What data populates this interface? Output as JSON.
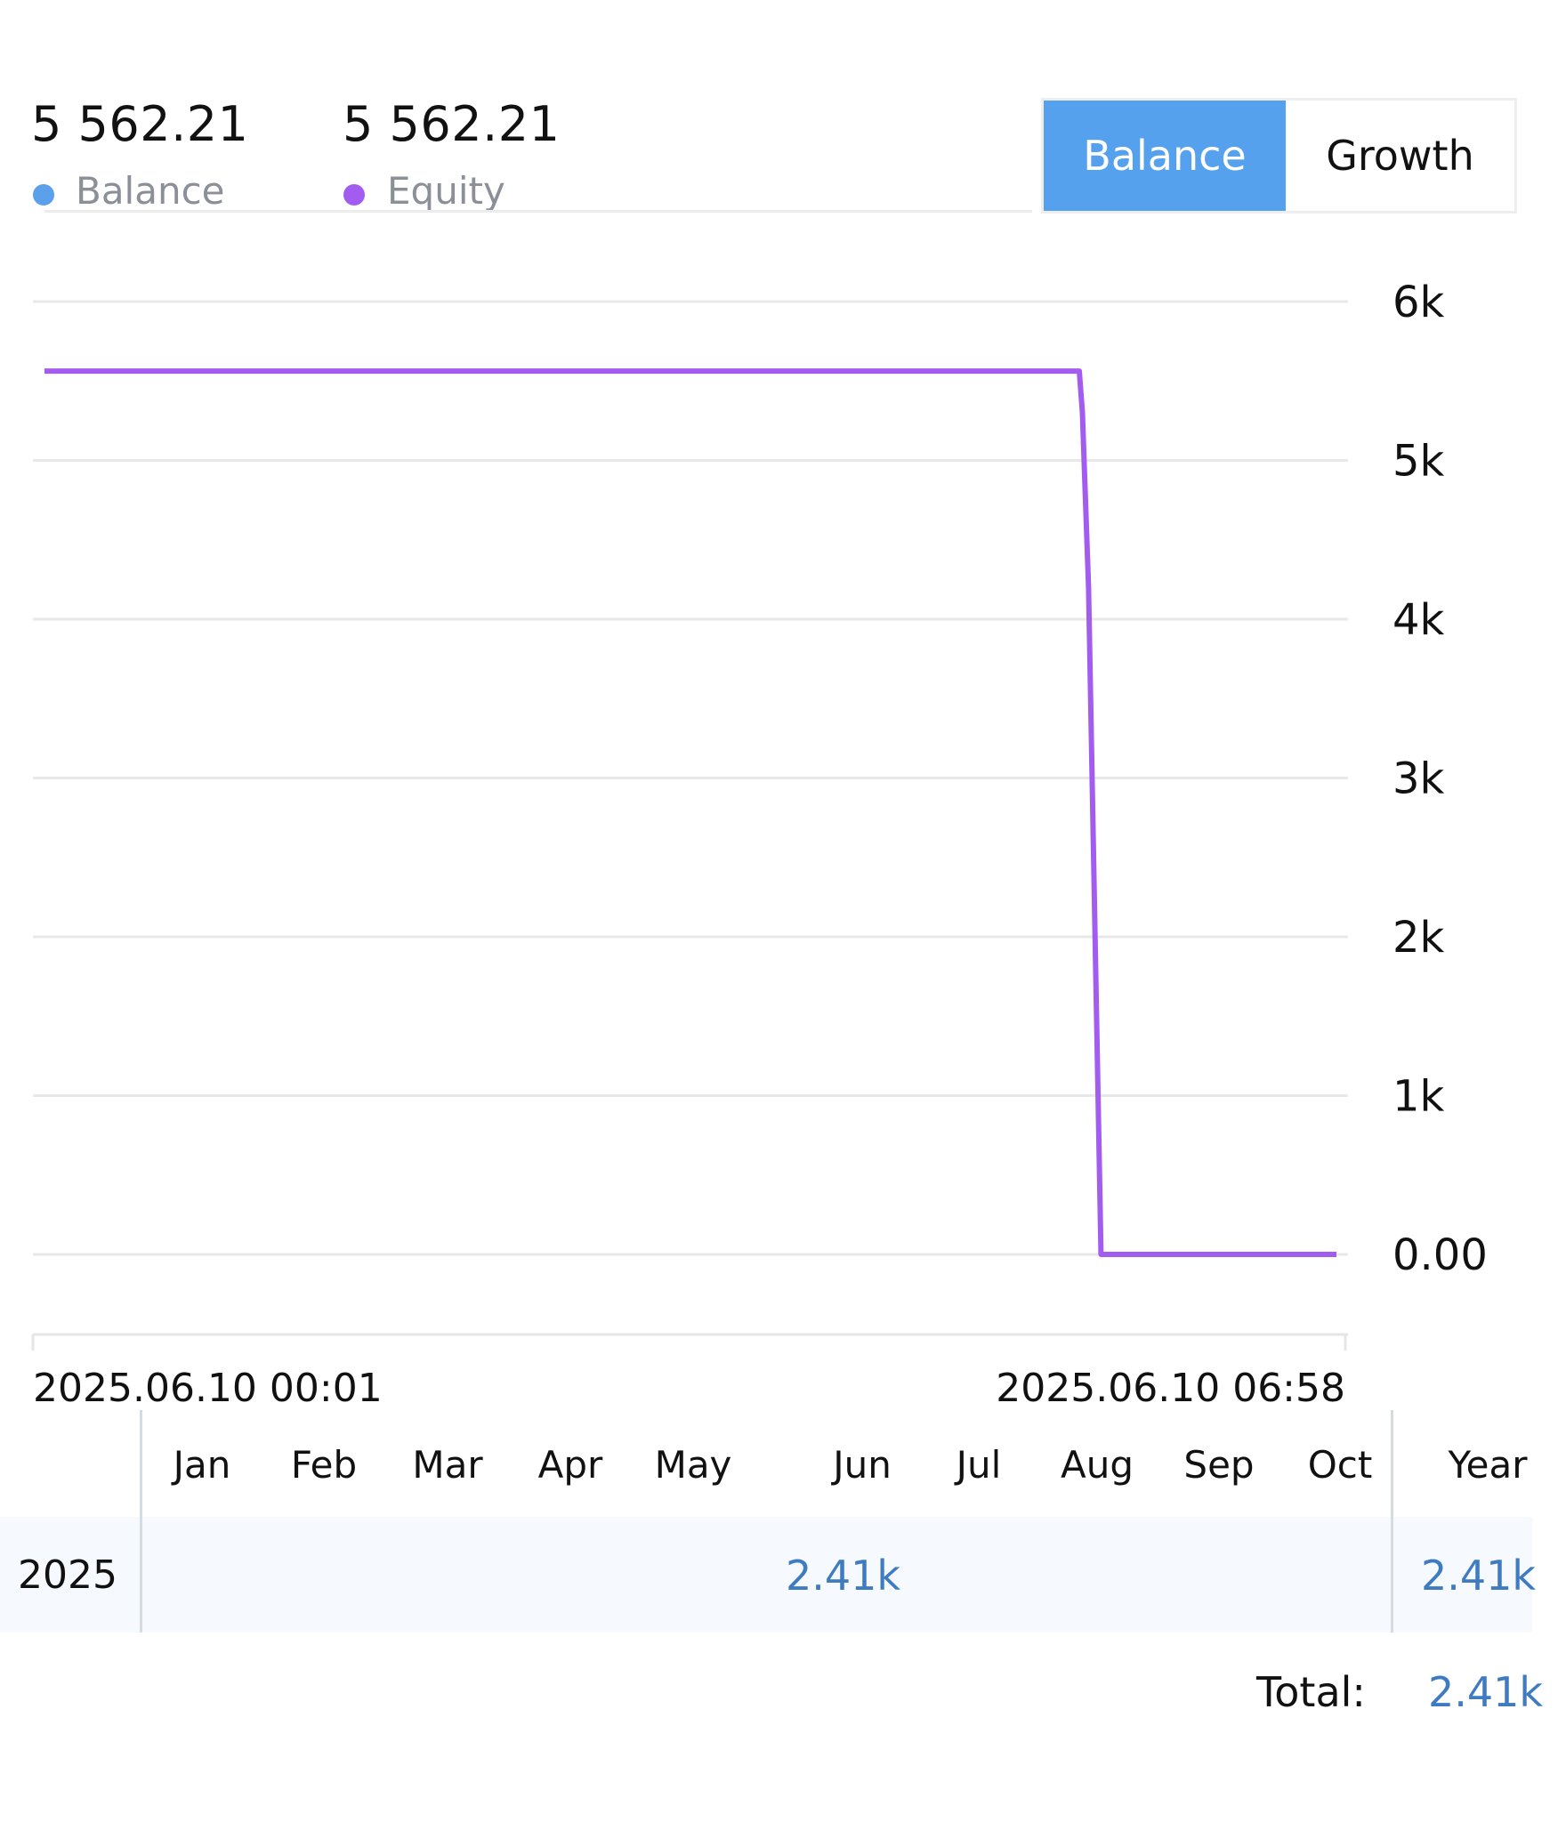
{
  "header": {
    "balance": {
      "value": "5 562.21",
      "label": "Balance",
      "color": "#5aa0ea"
    },
    "equity": {
      "value": "5 562.21",
      "label": "Equity",
      "color": "#a35cf0"
    }
  },
  "toggle": {
    "balance_label": "Balance",
    "growth_label": "Growth",
    "selected": "Balance",
    "accent": "#55a1ee"
  },
  "chart_data": {
    "type": "line",
    "x_start_label": "2025.06.10 00:01",
    "x_end_label": "2025.06.10 06:58",
    "x": [
      "2025.06.10 00:01",
      "2025.06.10 05:35",
      "2025.06.10 05:36",
      "2025.06.10 05:38",
      "2025.06.10 05:42",
      "2025.06.10 06:58"
    ],
    "series": [
      {
        "name": "Equity",
        "color": "#a35cf0",
        "values": [
          5562.21,
          5562.21,
          5300,
          4200,
          0,
          0
        ]
      }
    ],
    "yticks": [
      "6k",
      "5k",
      "4k",
      "3k",
      "2k",
      "1k",
      "0.00"
    ],
    "ylim": [
      0,
      6000
    ],
    "grid": true
  },
  "returns": {
    "months": [
      "Jan",
      "Feb",
      "Mar",
      "Apr",
      "May",
      "Jun",
      "Jul",
      "Aug",
      "Sep",
      "Oct"
    ],
    "year_header": "Year",
    "year": "2025",
    "jun_value": "2.41k",
    "year_value": "2.41k",
    "total_label": "Total:",
    "total_value": "2.41k"
  }
}
